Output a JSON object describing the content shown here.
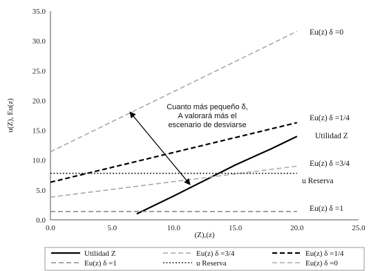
{
  "chart_data": {
    "type": "line",
    "xlabel": "(Z),(z)",
    "ylabel": "u(Z), Eu(z)",
    "xlim": [
      0,
      25
    ],
    "ylim": [
      0,
      35
    ],
    "x_ticks": [
      "0.0",
      "5.0",
      "10.0",
      "15.0",
      "20.0",
      "25.0"
    ],
    "y_ticks": [
      "0.0",
      "5.0",
      "10.0",
      "15.0",
      "20.0",
      "25.0",
      "30.0",
      "35.0"
    ],
    "grid": false,
    "legend_position": "bottom",
    "series": [
      {
        "name": "Utilidad Z",
        "label": "Utilidad Z",
        "color": "#000000",
        "dash": "solid",
        "width": 2.2,
        "points": [
          [
            7,
            1
          ],
          [
            10,
            4
          ],
          [
            15,
            9.2
          ],
          [
            18,
            12
          ],
          [
            20,
            14
          ]
        ]
      },
      {
        "name": "Eu(z) δ =3/4",
        "label": "Eu(z) δ =3/4",
        "color": "#a8a8a8",
        "dash": "dashed",
        "width": 1.6,
        "points": [
          [
            0,
            3.8
          ],
          [
            20,
            9
          ]
        ]
      },
      {
        "name": "Eu(z) δ =1/4",
        "label": "Eu(z) δ =1/4",
        "color": "#000000",
        "dash": "dashed",
        "width": 2.2,
        "points": [
          [
            0,
            6.3
          ],
          [
            20,
            16.3
          ]
        ]
      },
      {
        "name": "Eu(z) δ =1",
        "label": "Eu(z) δ =1",
        "color": "#8a8a8a",
        "dash": "dashed",
        "width": 1.6,
        "points": [
          [
            0,
            1.4
          ],
          [
            20,
            1.4
          ]
        ]
      },
      {
        "name": "u Reserva",
        "label": "u Reserva",
        "color": "#222222",
        "dash": "dotted",
        "width": 1.6,
        "points": [
          [
            0,
            7.8
          ],
          [
            20,
            7.8
          ]
        ]
      },
      {
        "name": "Eu(z) δ =0",
        "label": "Eu(z) δ =0",
        "color": "#a8a8a8",
        "dash": "dashed",
        "width": 1.6,
        "points": [
          [
            0,
            11.4
          ],
          [
            20,
            31.6
          ]
        ]
      }
    ],
    "annotation": {
      "lines": [
        "Cuanto más pequeño δ,",
        "A valorará más el",
        "escenario de desviarse"
      ]
    }
  },
  "legend": [
    {
      "label": "Utilidad Z",
      "color": "#000000",
      "dash": "solid",
      "width": 2.2
    },
    {
      "label": "Eu(z) δ =3/4",
      "color": "#a8a8a8",
      "dash": "dashed",
      "width": 1.6
    },
    {
      "label": "Eu(z) δ =1/4",
      "color": "#000000",
      "dash": "dashed",
      "width": 2.2
    },
    {
      "label": "Eu(z) δ =1",
      "color": "#8a8a8a",
      "dash": "dashed",
      "width": 1.6
    },
    {
      "label": "u Reserva",
      "color": "#222222",
      "dash": "dotted",
      "width": 1.6
    },
    {
      "label": "Eu(z) δ =0",
      "color": "#a8a8a8",
      "dash": "dashed",
      "width": 1.6
    }
  ]
}
